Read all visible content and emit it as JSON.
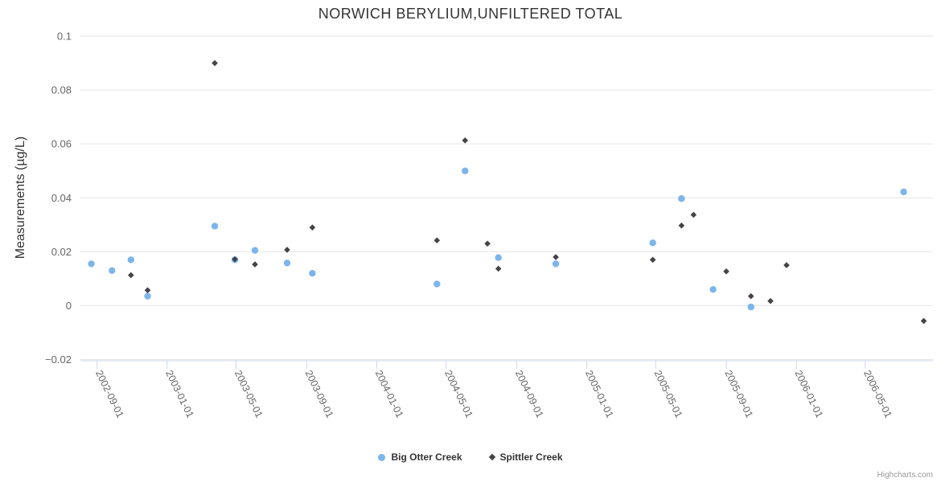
{
  "title": "NORWICH BERYLIUM,UNFILTERED TOTAL",
  "credits_label": "Highcharts.com",
  "colors": {
    "series_big_otter": "#7cb5ec",
    "series_spittler": "#434348",
    "gridline": "#e6e6e6",
    "axis_line": "#ccd6eb",
    "tick_label": "#666666",
    "title_text": "#333333",
    "legend_text": "#333333",
    "credits_text": "#999999"
  },
  "chart_data": {
    "type": "scatter",
    "title": "NORWICH BERYLIUM,UNFILTERED TOTAL",
    "xlabel": "",
    "ylabel": "Measurements (µg/L)",
    "grid": true,
    "legend_position": "bottom",
    "ylim": [
      -0.02,
      0.1
    ],
    "x_range": [
      "2002-08-03",
      "2006-08-27"
    ],
    "y_ticks": [
      {
        "value": 0.1,
        "label": "0.1"
      },
      {
        "value": 0.08,
        "label": "0.08"
      },
      {
        "value": 0.06,
        "label": "0.06"
      },
      {
        "value": 0.04,
        "label": "0.04"
      },
      {
        "value": 0.02,
        "label": "0.02"
      },
      {
        "value": 0,
        "label": "0"
      },
      {
        "value": -0.02,
        "label": "−0.02"
      }
    ],
    "x_ticks": [
      "2002-09-01",
      "2003-01-01",
      "2003-05-01",
      "2003-09-01",
      "2004-01-01",
      "2004-05-01",
      "2004-09-01",
      "2005-01-01",
      "2005-05-01",
      "2005-09-01",
      "2006-01-01",
      "2006-05-01"
    ],
    "series": [
      {
        "name": "Big Otter Creek",
        "color": "#7cb5ec",
        "marker": "circle",
        "points": [
          [
            "2002-08-22",
            0.0155
          ],
          [
            "2002-09-27",
            0.013
          ],
          [
            "2002-10-30",
            0.017
          ],
          [
            "2002-11-28",
            0.0035
          ],
          [
            "2003-03-25",
            0.0295
          ],
          [
            "2003-04-29",
            0.017
          ],
          [
            "2003-06-03",
            0.0205
          ],
          [
            "2003-07-29",
            0.0158
          ],
          [
            "2003-09-11",
            0.012
          ],
          [
            "2004-04-15",
            0.008
          ],
          [
            "2004-06-03",
            0.05
          ],
          [
            "2004-07-31",
            0.0178
          ],
          [
            "2004-11-08",
            0.0155
          ],
          [
            "2005-04-26",
            0.0233
          ],
          [
            "2005-06-15",
            0.0397
          ],
          [
            "2005-08-09",
            0.006
          ],
          [
            "2005-10-14",
            -0.0005
          ],
          [
            "2006-07-07",
            0.0422
          ]
        ]
      },
      {
        "name": "Spittler Creek",
        "color": "#434348",
        "marker": "diamond",
        "points": [
          [
            "2002-10-30",
            0.0113
          ],
          [
            "2002-11-28",
            0.0057
          ],
          [
            "2003-03-25",
            0.09
          ],
          [
            "2003-04-29",
            0.0172
          ],
          [
            "2003-06-03",
            0.0153
          ],
          [
            "2003-07-29",
            0.0207
          ],
          [
            "2003-09-11",
            0.029
          ],
          [
            "2004-04-15",
            0.0242
          ],
          [
            "2004-06-03",
            0.0613
          ],
          [
            "2004-07-12",
            0.023
          ],
          [
            "2004-07-31",
            0.0137
          ],
          [
            "2004-11-08",
            0.018
          ],
          [
            "2005-04-26",
            0.017
          ],
          [
            "2005-06-15",
            0.0297
          ],
          [
            "2005-07-06",
            0.0337
          ],
          [
            "2005-09-01",
            0.0127
          ],
          [
            "2005-10-14",
            0.0035
          ],
          [
            "2005-11-17",
            0.0017
          ],
          [
            "2005-12-15",
            0.015
          ],
          [
            "2006-08-11",
            -0.0057
          ]
        ]
      }
    ]
  }
}
